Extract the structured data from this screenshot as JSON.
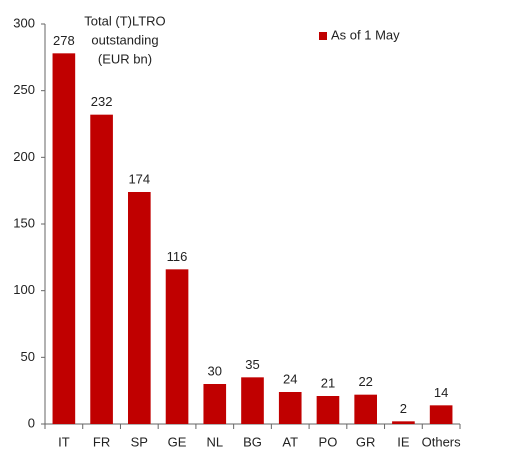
{
  "chart_data": {
    "type": "bar",
    "title": [
      "Total (T)LTRO",
      "outstanding",
      "(EUR bn)"
    ],
    "categories": [
      "IT",
      "FR",
      "SP",
      "GE",
      "NL",
      "BG",
      "AT",
      "PO",
      "GR",
      "IE",
      "Others"
    ],
    "series": [
      {
        "name": "As of 1 May",
        "color": "#c00000",
        "values": [
          278,
          232,
          174,
          116,
          30,
          35,
          24,
          21,
          22,
          2,
          14
        ]
      }
    ],
    "ylim": [
      0,
      300
    ],
    "yticks": [
      0,
      50,
      100,
      150,
      200,
      250,
      300
    ],
    "grid": false,
    "data_labels": true,
    "legend": "top-right"
  }
}
